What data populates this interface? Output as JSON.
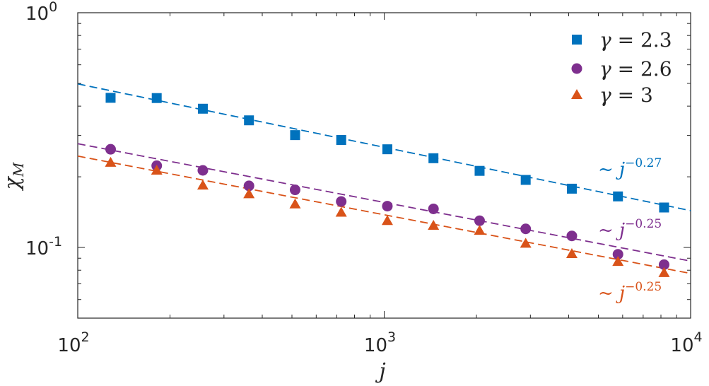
{
  "chart_data": {
    "type": "scatter",
    "xscale": "log",
    "yscale": "log",
    "xlim": [
      100,
      10000
    ],
    "ylim": [
      0.05,
      1
    ],
    "xlabel": "j",
    "ylabel": "χM",
    "ylabel_main": "χ",
    "ylabel_sub": "M",
    "x_ticks": [
      {
        "value": 100,
        "base": "10",
        "exp": "2"
      },
      {
        "value": 1000,
        "base": "10",
        "exp": "3"
      },
      {
        "value": 10000,
        "base": "10",
        "exp": "4"
      }
    ],
    "y_ticks": [
      {
        "value": 1,
        "base": "10",
        "exp": "0"
      },
      {
        "value": 0.1,
        "base": "10",
        "exp": "-1"
      }
    ],
    "legend_position": "top-right",
    "x": [
      128,
      181,
      256,
      362,
      512,
      724,
      1024,
      1448,
      2048,
      2896,
      4096,
      5793,
      8192
    ],
    "series": [
      {
        "name": "γ = 2.3",
        "legend_symbol": "γ",
        "legend_eq": "= 2.3",
        "marker": "square",
        "color": "#0072BD",
        "values": [
          0.434,
          0.433,
          0.39,
          0.348,
          0.301,
          0.287,
          0.262,
          0.24,
          0.212,
          0.194,
          0.178,
          0.165,
          0.148
        ],
        "fit": {
          "amplitude": 1.725,
          "exponent": -0.27
        },
        "annotation": {
          "prefix": "~ j",
          "exp": "−0.27"
        }
      },
      {
        "name": "γ = 2.6",
        "legend_symbol": "γ",
        "legend_eq": "= 2.6",
        "marker": "circle",
        "color": "#7E2F8E",
        "values": [
          0.262,
          0.223,
          0.213,
          0.183,
          0.176,
          0.157,
          0.15,
          0.146,
          0.13,
          0.12,
          0.112,
          0.0935,
          0.0845
        ],
        "fit": {
          "amplitude": 0.875,
          "exponent": -0.25
        },
        "annotation": {
          "prefix": "~ j",
          "exp": "−0.25"
        }
      },
      {
        "name": "γ = 3",
        "legend_symbol": "γ",
        "legend_eq": "= 3",
        "marker": "triangle",
        "color": "#D95319",
        "values": [
          0.23,
          0.213,
          0.184,
          0.169,
          0.153,
          0.141,
          0.13,
          0.124,
          0.118,
          0.104,
          0.094,
          0.087,
          0.078
        ],
        "fit": {
          "amplitude": 0.775,
          "exponent": -0.25
        },
        "annotation": {
          "prefix": "~ j",
          "exp": "−0.25"
        }
      }
    ],
    "grid": false
  }
}
